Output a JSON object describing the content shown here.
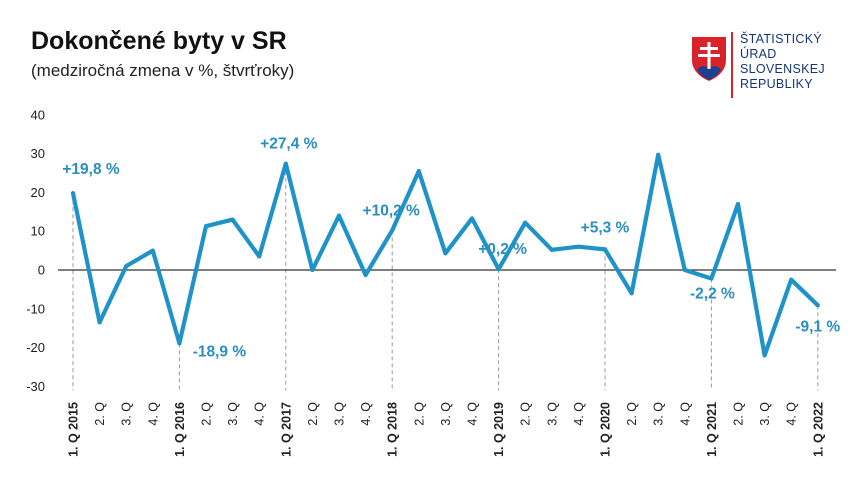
{
  "header": {
    "title": "Dokončené byty v SR",
    "subtitle": "(medziročná zmena v %, štvrťroky)"
  },
  "logo": {
    "lines": [
      "ŠTATISTICKÝ",
      "ÚRAD",
      "SLOVENSKEJ",
      "REPUBLIKY"
    ],
    "icon": "slovak-coat-of-arms-icon"
  },
  "colors": {
    "line": "#1f93c9",
    "annotation": "#2a8ec3",
    "zero_line": "#333333",
    "guide": "#999999"
  },
  "chart_data": {
    "type": "line",
    "title": "Dokončené byty v SR",
    "subtitle": "(medziročná zmena v %, štvrťroky)",
    "ylim": [
      -30,
      40
    ],
    "yticks": [
      -30,
      -20,
      -10,
      0,
      10,
      20,
      30,
      40
    ],
    "categories": [
      "1. Q 2015",
      "2. Q",
      "3. Q",
      "4. Q",
      "1. Q 2016",
      "2. Q",
      "3. Q",
      "4. Q",
      "1. Q 2017",
      "2. Q",
      "3. Q",
      "4. Q",
      "1. Q 2018",
      "2. Q",
      "3. Q",
      "4. Q",
      "1. Q 2019",
      "2. Q",
      "3. Q",
      "4. Q",
      "1. Q 2020",
      "2. Q",
      "3. Q",
      "4. Q",
      "1. Q 2021",
      "2. Q",
      "3. Q",
      "4. Q",
      "1. Q 2022"
    ],
    "bold_categories": [
      "1. Q 2015",
      "1. Q 2016",
      "1. Q 2017",
      "1. Q 2018",
      "1. Q 2019",
      "1. Q 2020",
      "1. Q 2021",
      "1. Q 2022"
    ],
    "series": [
      {
        "values": [
          19.8,
          -13.5,
          1.0,
          5.0,
          -18.9,
          11.3,
          13.0,
          3.5,
          27.4,
          0.0,
          14.0,
          -1.3,
          10.2,
          25.5,
          4.3,
          13.3,
          0.2,
          12.2,
          5.2,
          6.0,
          5.3,
          -6.0,
          29.7,
          0.0,
          -2.2,
          17.0,
          -22.0,
          -2.5,
          -9.1
        ]
      }
    ],
    "annotations": [
      {
        "index": 0,
        "text": "+19,8 %"
      },
      {
        "index": 4,
        "text": "-18,9 %"
      },
      {
        "index": 8,
        "text": "+27,4 %"
      },
      {
        "index": 12,
        "text": "+10,2 %"
      },
      {
        "index": 16,
        "text": "+0,2 %"
      },
      {
        "index": 20,
        "text": "+5,3 %"
      },
      {
        "index": 24,
        "text": "-2,2 %"
      },
      {
        "index": 28,
        "text": "-9,1 %"
      }
    ],
    "grid": false,
    "legend": "none"
  }
}
